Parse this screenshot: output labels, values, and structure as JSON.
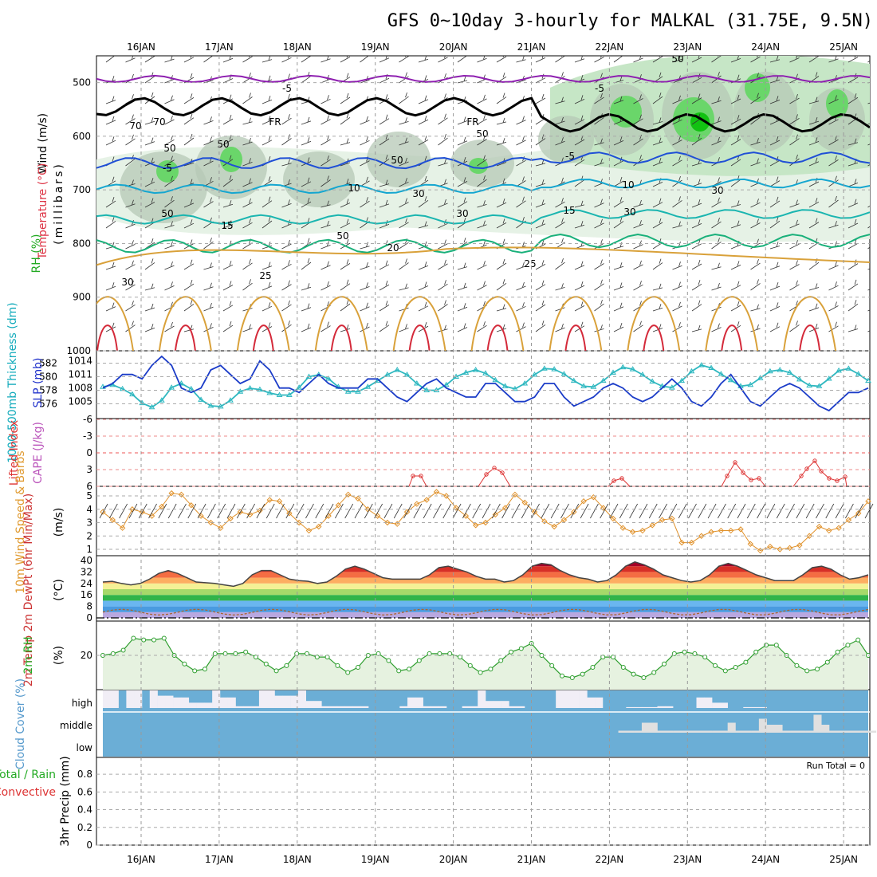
{
  "chart_data": {
    "type": "meteogram",
    "title": "GFS 0~10day 3-hourly for MALKAL (31.75E, 9.5N)",
    "dates": [
      "16JAN",
      "17JAN",
      "18JAN",
      "19JAN",
      "20JAN",
      "21JAN",
      "22JAN",
      "23JAN",
      "24JAN",
      "25JAN"
    ],
    "run_total": "Run Total = 0",
    "colors": {
      "purple": "#8e1fb0",
      "blue": "#1f4fd6",
      "cyan": "#14a6d0",
      "teal": "#1ab5b0",
      "green": "#19b07a",
      "orange": "#d9a13a",
      "red": "#d42a3a",
      "trace_blue": "#1b3cc8",
      "trace_cyan": "#2fb8c0",
      "trace_orange": "#e0912a",
      "rh_green": "#2e9e2e",
      "cloud": "#6baed6",
      "grid": "#999999"
    },
    "panels": {
      "upper_air": {
        "ylabel_wind": "Wind (m/s)",
        "ylabel_temp": "Temperature (°C)",
        "ylabel_rh": "RH (%)",
        "ylabel_pres": "(millibars)",
        "pressure_ticks": [
          "500",
          "600",
          "700",
          "800",
          "900",
          "1000"
        ],
        "temp_labels": [
          "-5",
          "-5",
          "FR",
          "FR",
          "-5",
          "-5",
          "10",
          "10",
          "15",
          "15",
          "20",
          "25",
          "25"
        ],
        "rh_labels": [
          "70",
          "70",
          "50",
          "50",
          "50",
          "50",
          "50",
          "50",
          "30",
          "30",
          "30",
          "30",
          "30",
          "50"
        ],
        "isotherms": [
          {
            "label": "-5",
            "base_p": 493,
            "amp": 6,
            "color": "purple"
          },
          {
            "label": "FR",
            "base_p": 545,
            "amp": 16,
            "color": "black"
          },
          {
            "label": "-5",
            "base_p": 650,
            "amp": 10,
            "color": "blue"
          },
          {
            "label": "10",
            "base_p": 698,
            "amp": 8,
            "color": "cyan"
          },
          {
            "label": "15",
            "base_p": 755,
            "amp": 8,
            "color": "teal"
          },
          {
            "label": "20",
            "base_p": 805,
            "amp": 12,
            "color": "green"
          }
        ]
      },
      "thickness_slp": {
        "ylabel_thick": "1000-500mb Thickness (dm)",
        "ylabel_slp": "SLP (mb)",
        "thick_ticks": [
          "582",
          "580",
          "578",
          "576"
        ],
        "slp_ticks": [
          "1014",
          "1011",
          "1008",
          "1005"
        ],
        "slp": [
          1008,
          1009,
          1011,
          1011,
          1010,
          1013,
          1015,
          1013,
          1008,
          1007,
          1008,
          1012,
          1013,
          1011,
          1009,
          1010,
          1014,
          1012,
          1008,
          1008,
          1007,
          1009,
          1011,
          1009,
          1008,
          1008,
          1008,
          1010,
          1010,
          1008,
          1006,
          1005,
          1007,
          1009,
          1010,
          1008,
          1007,
          1006,
          1006,
          1009,
          1009,
          1007,
          1005,
          1005,
          1006,
          1009,
          1009,
          1006,
          1004,
          1005,
          1006,
          1008,
          1009,
          1008,
          1006,
          1005,
          1006,
          1008,
          1010,
          1008,
          1005,
          1004,
          1006,
          1009,
          1011,
          1008,
          1005,
          1004,
          1006,
          1008,
          1009,
          1008,
          1006,
          1004,
          1003,
          1005,
          1007,
          1007,
          1008
        ],
        "thickness": [
          578.5,
          578.8,
          578.2,
          577.4,
          576.1,
          575.5,
          576.5,
          578.4,
          579.0,
          578.2,
          576.6,
          575.7,
          575.6,
          576.5,
          577.8,
          578.3,
          578.1,
          577.6,
          577.3,
          577.3,
          578.4,
          580.0,
          580.3,
          579.7,
          578.5,
          577.8,
          577.8,
          578.5,
          579.4,
          580.3,
          581.0,
          580.3,
          579.0,
          578.0,
          578.0,
          578.8,
          580.0,
          580.6,
          581.0,
          580.5,
          579.5,
          578.6,
          578.2,
          579.0,
          580.3,
          581.2,
          581.1,
          580.4,
          579.4,
          578.6,
          578.5,
          579.4,
          580.6,
          581.4,
          581.1,
          580.3,
          579.3,
          578.6,
          578.4,
          579.4,
          580.8,
          581.7,
          581.3,
          580.4,
          579.5,
          578.6,
          578.8,
          579.8,
          580.8,
          581.0,
          580.6,
          579.6,
          578.7,
          578.6,
          579.7,
          580.9,
          581.2,
          580.4,
          579.4
        ]
      },
      "cape_li": {
        "ylabel_li": "Lifted Index",
        "ylabel_cape": "CAPE (J/kg)",
        "li_ticks": [
          "-6",
          "-3",
          "0",
          "3",
          "6"
        ]
      },
      "wind10m": {
        "ylabel": "10m Wind Speed & Barbs",
        "unit": "(m/s)",
        "ticks": [
          "5",
          "4",
          "3",
          "2",
          "1"
        ],
        "speed": [
          3.8,
          3.2,
          2.6,
          4.0,
          3.8,
          3.5,
          4.2,
          5.2,
          5.1,
          4.3,
          3.5,
          3.0,
          2.6,
          3.3,
          3.8,
          3.6,
          3.9,
          4.7,
          4.6,
          3.7,
          3.0,
          2.4,
          2.7,
          3.5,
          4.3,
          5.1,
          4.8,
          4.0,
          3.5,
          3.0,
          2.9,
          3.8,
          4.4,
          4.7,
          5.3,
          5.0,
          4.1,
          3.5,
          2.8,
          3.0,
          3.6,
          4.1,
          5.1,
          4.5,
          3.8,
          3.1,
          2.7,
          3.2,
          3.8,
          4.6,
          4.9,
          4.1,
          3.3,
          2.6,
          2.3,
          2.4,
          2.8,
          3.2,
          3.3,
          1.5,
          1.5,
          2.0,
          2.3,
          2.4,
          2.4,
          2.5,
          1.4,
          0.9,
          1.2,
          1.0,
          1.1,
          1.3,
          2.0,
          2.7,
          2.4,
          2.6,
          3.2,
          3.7,
          4.6
        ]
      },
      "temp2m": {
        "ylabel": "2m Temp 2m DewPt (6hr Min/Max)",
        "unit": "(°C)",
        "ticks": [
          "40",
          "32",
          "24",
          "16",
          "8",
          "0"
        ],
        "temp": [
          25,
          25.5,
          24,
          23,
          24,
          27,
          31,
          33,
          31,
          28,
          25,
          24.5,
          24,
          23,
          22,
          24,
          30,
          33,
          33,
          30,
          27,
          26,
          25.5,
          24,
          25,
          29,
          34,
          36,
          34,
          31,
          28,
          27,
          27,
          27,
          27,
          30,
          35,
          36,
          34,
          32,
          29,
          27,
          27,
          25,
          26,
          30,
          36,
          38,
          37,
          33,
          30,
          28,
          27,
          25,
          26,
          30,
          36,
          39,
          37,
          34,
          30,
          28,
          26,
          25,
          26,
          30,
          36,
          38,
          36,
          33,
          30,
          28,
          26,
          26,
          26,
          30,
          35,
          36,
          34,
          30,
          27,
          28,
          30
        ]
      },
      "rh2m": {
        "ylabel": "2m RH",
        "unit": "(%)",
        "ticks": [
          "20"
        ],
        "rh": [
          20,
          21,
          23,
          30,
          29,
          29,
          30,
          20,
          15,
          11,
          12,
          21,
          21,
          21,
          22,
          19,
          15,
          11,
          14,
          21,
          21,
          19,
          19,
          14,
          10,
          13,
          20,
          21,
          17,
          11,
          12,
          17,
          21,
          21,
          21,
          19,
          14,
          10,
          12,
          17,
          22,
          24,
          27,
          20,
          14,
          8,
          7,
          9,
          13,
          19,
          19,
          13,
          9,
          7,
          10,
          15,
          21,
          22,
          21,
          19,
          14,
          11,
          13,
          16,
          22,
          26,
          26,
          20,
          14,
          11,
          12,
          16,
          22,
          26,
          29,
          20
        ]
      },
      "cloud": {
        "ylabel": "Cloud Cover (%)",
        "levels": [
          "high",
          "middle",
          "low"
        ],
        "high": [
          1,
          1,
          0,
          1,
          1,
          0,
          1,
          0.7,
          0.7,
          0.6,
          0.6,
          0.3,
          0.3,
          0.3,
          1,
          0.6,
          0.6,
          0.1,
          0.1,
          0.1,
          1,
          1,
          0.7,
          0.7,
          0.7,
          1,
          0.4,
          0.4,
          0.1,
          0.1,
          0.1,
          0.1,
          0.1,
          0.1,
          0,
          0,
          0,
          0,
          0.1,
          0.6,
          0.6,
          0.1,
          0.1,
          0.1,
          0,
          0,
          0.1,
          0.1,
          1,
          0.4,
          0.4,
          0.4,
          0.1,
          0.1,
          0,
          0,
          0,
          0,
          1,
          1,
          1,
          1,
          0.6,
          0.6,
          0,
          0,
          0,
          0.05,
          0.05,
          0.05,
          0.05,
          0.1,
          0.1,
          0,
          0,
          0,
          0.6,
          0.6,
          0.3,
          0.3,
          0,
          0,
          0.05,
          0.05,
          0.05,
          0,
          0,
          0,
          0,
          0,
          0,
          0,
          0,
          0,
          0,
          0,
          0,
          0
        ],
        "middle": [
          0,
          0,
          0,
          0,
          0,
          0,
          0,
          0,
          0,
          0,
          0,
          0,
          0,
          0,
          0,
          0,
          0,
          0,
          0,
          0,
          0,
          0,
          0,
          0,
          0,
          0,
          0,
          0,
          0,
          0,
          0,
          0,
          0,
          0,
          0,
          0,
          0,
          0,
          0,
          0,
          0,
          0,
          0,
          0,
          0,
          0,
          0,
          0,
          0,
          0,
          0,
          0,
          0,
          0,
          0,
          0,
          0,
          0,
          0,
          0,
          0,
          0,
          0,
          0,
          0,
          0,
          0.1,
          0.1,
          0.1,
          0.5,
          0.5,
          0.1,
          0.1,
          0.1,
          0.1,
          0.1,
          0.1,
          0.1,
          0.1,
          0.1,
          0.5,
          0.1,
          0.1,
          0.1,
          0.7,
          0.4,
          0.4,
          0.1,
          0.1,
          0.1,
          0.1,
          0.9,
          0.4,
          0.1,
          0.1,
          0.1,
          0.1,
          0.1,
          0.1
        ]
      },
      "precip": {
        "ylabel_total": "Total / Rain",
        "ylabel_conv": "Convective",
        "ylabel": "3hr Precip (mm)",
        "ticks": [
          "0.8",
          "0.6",
          "0.4",
          "0.2",
          "0"
        ]
      }
    }
  }
}
